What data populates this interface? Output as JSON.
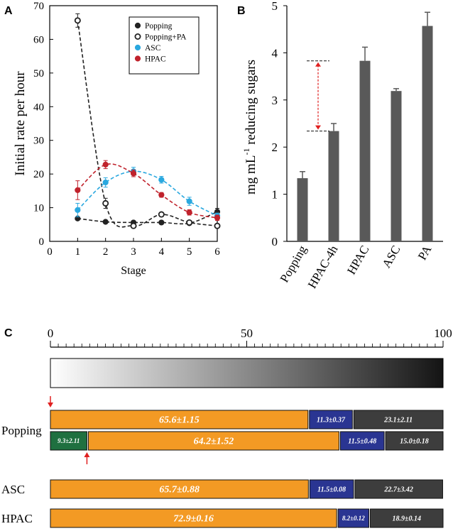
{
  "chart_data": [
    {
      "panel": "A",
      "type": "line",
      "xlabel": "Stage",
      "ylabel": "Initial rate  per hour",
      "xlim": [
        0,
        6
      ],
      "ylim": [
        0,
        70
      ],
      "xticks": [
        "0",
        "1",
        "2",
        "3",
        "4",
        "5",
        "6"
      ],
      "yticks": [
        "0",
        "10",
        "20",
        "30",
        "40",
        "50",
        "60",
        "70"
      ],
      "legend_position": "top-right",
      "x": [
        1,
        2,
        3,
        4,
        5,
        6
      ],
      "series": [
        {
          "name": "Popping",
          "color": "#222222",
          "marker": "filled",
          "values": [
            6.8,
            5.8,
            5.6,
            5.6,
            5.4,
            8.8
          ],
          "errors": [
            0.3,
            0.3,
            0.3,
            0.3,
            0.3,
            1.0
          ]
        },
        {
          "name": "Popping+PA",
          "color": "#222222",
          "marker": "open",
          "values": [
            65.6,
            11.3,
            4.6,
            8.0,
            5.6,
            4.6
          ],
          "errors": [
            2.0,
            1.5,
            0.5,
            0.4,
            0.3,
            0.5
          ]
        },
        {
          "name": "ASC",
          "color": "#2aa8df",
          "marker": "filled",
          "values": [
            9.3,
            17.5,
            20.8,
            18.3,
            11.9,
            7.6
          ],
          "errors": [
            2.0,
            1.4,
            1.2,
            1.0,
            1.2,
            0.8
          ]
        },
        {
          "name": "HPAC",
          "color": "#c0222c",
          "marker": "filled",
          "values": [
            15.2,
            22.8,
            20.2,
            13.8,
            8.6,
            7.0
          ],
          "errors": [
            2.8,
            1.2,
            1.0,
            0.7,
            0.8,
            0.8
          ]
        }
      ]
    },
    {
      "panel": "B",
      "type": "bar",
      "ylabel": "mg mL-1 reducing sugars",
      "ylim": [
        0,
        5
      ],
      "yticks": [
        "0",
        "1",
        "2",
        "3",
        "4",
        "5"
      ],
      "categories": [
        "Popping",
        "HPAC-4h",
        "HPAC",
        "ASC",
        "PA"
      ],
      "values": [
        1.34,
        2.34,
        3.83,
        3.19,
        4.57
      ],
      "errors": [
        0.14,
        0.16,
        0.29,
        0.05,
        0.29
      ],
      "bar_color": "#595959",
      "annotation": {
        "type": "double-arrow",
        "from": 2.34,
        "to": 3.83,
        "color": "#e02020"
      }
    },
    {
      "panel": "C",
      "type": "stacked-bar",
      "scale": {
        "min": 0,
        "max": 100,
        "ticks": [
          "0",
          "50",
          "100"
        ]
      },
      "rows": [
        {
          "label": "Popping",
          "segments": [
            {
              "value": 65.6,
              "label": "65.6±1.15",
              "color": "#f39a24"
            },
            {
              "value": 11.3,
              "label": "11.3±0.37",
              "color": "#2a3592"
            },
            {
              "value": 23.1,
              "label": "23.1±2.11",
              "color": "#3d3d3d"
            }
          ]
        },
        {
          "label": "",
          "segments": [
            {
              "value": 9.3,
              "label": "9.3±2.11",
              "color": "#1f7040"
            },
            {
              "value": 64.2,
              "label": "64.2±1.52",
              "color": "#f39a24"
            },
            {
              "value": 11.5,
              "label": "11.5±0.48",
              "color": "#2a3592"
            },
            {
              "value": 15.0,
              "label": "15.0±0.18",
              "color": "#3d3d3d"
            }
          ]
        },
        {
          "label": "ASC",
          "segments": [
            {
              "value": 65.7,
              "label": "65.7±0.88",
              "color": "#f39a24"
            },
            {
              "value": 11.5,
              "label": "11.5±0.08",
              "color": "#2a3592"
            },
            {
              "value": 22.7,
              "label": "22.7±3.42",
              "color": "#3d3d3d"
            }
          ]
        },
        {
          "label": "HPAC",
          "segments": [
            {
              "value": 72.9,
              "label": "72.9±0.16",
              "color": "#f39a24"
            },
            {
              "value": 8.2,
              "label": "8.2±0.12",
              "color": "#2a3592"
            },
            {
              "value": 18.9,
              "label": "18.9±0.14",
              "color": "#3d3d3d"
            }
          ]
        }
      ],
      "arrows": [
        {
          "row": 0,
          "at": 0,
          "direction": "down",
          "color": "#e02020"
        },
        {
          "row": 1,
          "at": 9.3,
          "direction": "up",
          "color": "#e02020"
        }
      ]
    }
  ],
  "panel_labels": [
    "A",
    "B",
    "C"
  ]
}
